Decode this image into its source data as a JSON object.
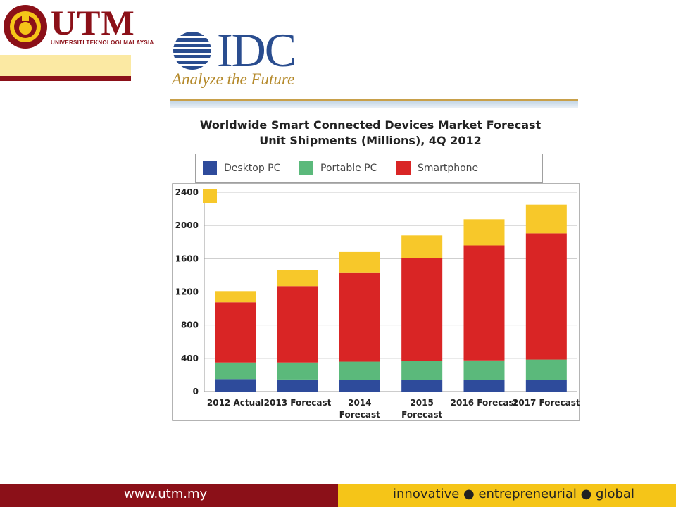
{
  "header": {
    "utm_word": "UTM",
    "utm_subtitle": "UNIVERSITI TEKNOLOGI MALAYSIA",
    "idc_word": "IDC",
    "idc_tagline": "Analyze the Future"
  },
  "footer": {
    "url": "www.utm.my",
    "tagline": "innovative ● entrepreneurial ● global"
  },
  "colors": {
    "utm_maroon": "#8b1018",
    "utm_yellow": "#f5c518",
    "desktop": "#2e4b9b",
    "portable": "#5bb97b",
    "smartphone": "#d92525",
    "tablet": "#f7c82a"
  },
  "chart_data": {
    "type": "bar",
    "stacked": true,
    "title_line1": "Worldwide Smart Connected Devices Market Forecast",
    "title_line2": "Unit Shipments (Millions), 4Q 2012",
    "categories": [
      [
        "2012 Actual"
      ],
      [
        "2013 Forecast"
      ],
      [
        "2014",
        "Forecast"
      ],
      [
        "2015",
        "Forecast"
      ],
      [
        "2016 Forecast"
      ],
      [
        "2017 Forecast"
      ]
    ],
    "yticks": [
      "0",
      "400",
      "800",
      "1200",
      "1600",
      "2000",
      "2400"
    ],
    "ylim": [
      0,
      2400
    ],
    "grid": true,
    "legend_position": "top",
    "series": [
      {
        "name": "Desktop PC",
        "color": "#2e4b9b",
        "values": [
          150,
          145,
          140,
          140,
          140,
          140
        ]
      },
      {
        "name": "Portable PC",
        "color": "#5bb97b",
        "values": [
          200,
          205,
          220,
          230,
          235,
          245
        ]
      },
      {
        "name": "Smartphone",
        "color": "#d92525",
        "values": [
          725,
          920,
          1075,
          1235,
          1385,
          1520
        ]
      },
      {
        "color": "#f7c82a",
        "values": [
          135,
          195,
          245,
          275,
          315,
          345
        ]
      }
    ]
  }
}
